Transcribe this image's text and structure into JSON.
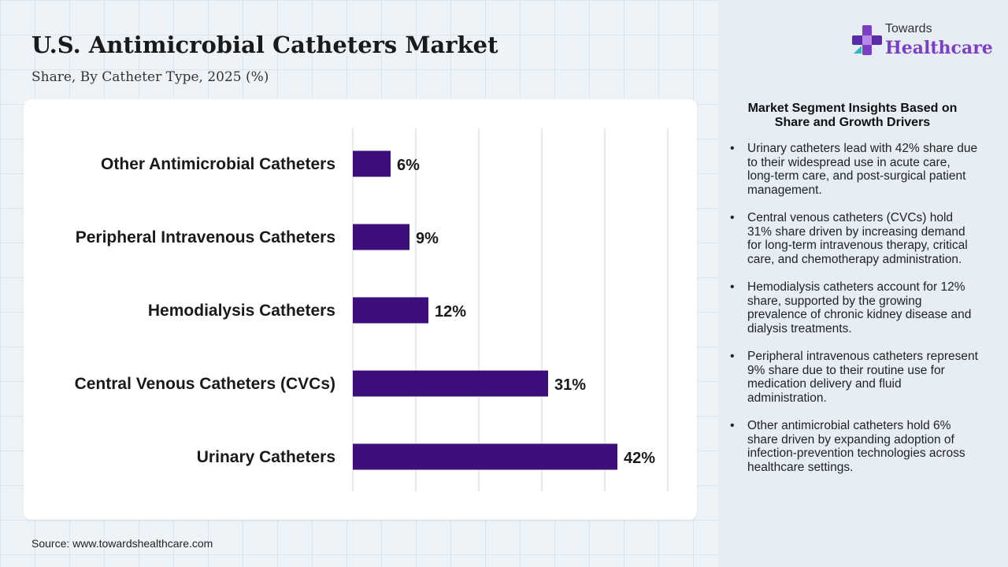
{
  "header": {
    "title": "U.S. Antimicrobial Catheters Market",
    "subtitle": "Share, By Catheter Type, 2025 (%)"
  },
  "source": "Source: www.towardshealthcare.com",
  "logo": {
    "line1": "Towards",
    "line2": "Healthcare",
    "icon": "cross-logo-icon"
  },
  "insights": {
    "title_line1": "Market Segment Insights Based on",
    "title_line2": "Share and Growth Drivers",
    "items": [
      "Urinary catheters lead with 42% share due to their widespread use in acute care, long-term care, and post-surgical patient management.",
      "Central venous catheters (CVCs) hold 31% share driven by increasing demand for long-term intravenous therapy, critical care, and chemotherapy administration.",
      "Hemodialysis catheters account for 12% share, supported by the growing prevalence of chronic kidney disease and dialysis treatments.",
      "Peripheral intravenous catheters represent 9% share due to their routine use for medication delivery and fluid administration.",
      "Other antimicrobial catheters hold 6% share driven by expanding adoption of infection-prevention technologies across healthcare settings."
    ]
  },
  "colors": {
    "bar": "#3d0f7a",
    "grid": "#d6d6d6",
    "logo_accent": "#7a3fc4"
  },
  "chart_data": {
    "type": "bar",
    "orientation": "horizontal",
    "title": "U.S. Antimicrobial Catheters Market",
    "subtitle": "Share, By Catheter Type, 2025 (%)",
    "categories": [
      "Other Antimicrobial Catheters",
      "Peripheral Intravenous Catheters",
      "Hemodialysis Catheters",
      "Central Venous Catheters (CVCs)",
      "Urinary Catheters"
    ],
    "values": [
      6,
      9,
      12,
      31,
      42
    ],
    "value_labels": [
      "6%",
      "9%",
      "12%",
      "31%",
      "42%"
    ],
    "xlim": [
      0,
      50
    ],
    "grid": true,
    "xlabel": "",
    "ylabel": ""
  }
}
